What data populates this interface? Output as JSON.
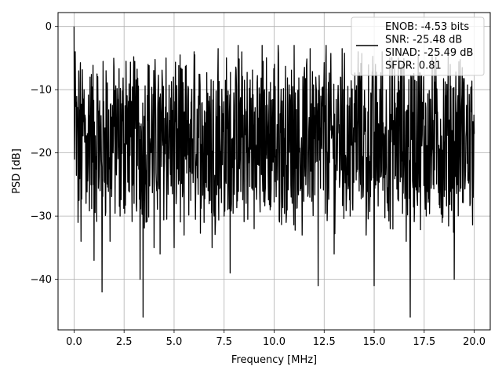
{
  "chart_data": {
    "type": "line",
    "xlabel": "Frequency [MHz]",
    "ylabel": "PSD [dB]",
    "xlim": [
      -0.8,
      20.8
    ],
    "ylim": [
      -48,
      2.2
    ],
    "grid": true,
    "x_ticks": [
      0.0,
      2.5,
      5.0,
      7.5,
      10.0,
      12.5,
      15.0,
      17.5,
      20.0
    ],
    "x_tick_labels": [
      "0.0",
      "2.5",
      "5.0",
      "7.5",
      "10.0",
      "12.5",
      "15.0",
      "17.5",
      "20.0"
    ],
    "y_ticks": [
      0,
      -10,
      -20,
      -30,
      -40
    ],
    "y_tick_labels": [
      "0",
      "−10",
      "−20",
      "−30",
      "−40"
    ],
    "line_color": "#000000",
    "legend": {
      "placement": "upper right",
      "entries": [
        "ENOB: -4.53 bits",
        "SNR: -25.48 dB",
        "SINAD: -25.49 dB",
        "SFDR: 0.81"
      ]
    },
    "series": [
      {
        "x": [
          0.0,
          0.02,
          0.06,
          0.1,
          0.2,
          0.3,
          0.35,
          0.5,
          0.6,
          0.8,
          1.0,
          1.15,
          1.3,
          1.4,
          1.6,
          1.8,
          2.0,
          2.3,
          2.6,
          3.0,
          3.3,
          3.45,
          3.7,
          4.0,
          4.3,
          4.6,
          5.0,
          5.3,
          5.5,
          6.0,
          6.5,
          6.9,
          7.2,
          7.5,
          7.8,
          8.2,
          8.6,
          9.0,
          9.4,
          9.8,
          10.2,
          10.6,
          11.0,
          11.4,
          11.8,
          12.2,
          12.6,
          13.0,
          13.4,
          13.8,
          14.2,
          14.6,
          15.0,
          15.4,
          15.8,
          16.2,
          16.6,
          16.8,
          17.2,
          17.6,
          18.0,
          18.4,
          18.8,
          19.0,
          19.4,
          19.8,
          20.0
        ],
        "y": [
          0.0,
          -21.0,
          -4.0,
          -12.0,
          -31.0,
          -9.0,
          -34.0,
          -10.0,
          -28.0,
          -8.0,
          -37.0,
          -7.5,
          -26.0,
          -42.0,
          -7.0,
          -34.0,
          -6.5,
          -30.0,
          -5.5,
          -28.0,
          -40.0,
          -46.0,
          -6.0,
          -35.0,
          -36.0,
          -5.0,
          -35.0,
          -4.5,
          -33.0,
          -4.0,
          -31.0,
          -35.0,
          -3.5,
          -30.0,
          -39.0,
          -3.0,
          -28.0,
          -32.0,
          -3.0,
          -29.0,
          -3.0,
          -31.0,
          -3.0,
          -33.0,
          -3.5,
          -41.0,
          -3.0,
          -36.0,
          -3.5,
          -30.0,
          -4.0,
          -33.0,
          -41.0,
          -4.0,
          -32.0,
          -5.0,
          -34.0,
          -46.0,
          -4.5,
          -30.0,
          -5.5,
          -31.0,
          -6.0,
          -40.0,
          -6.5,
          -28.0,
          -17.0
        ]
      }
    ]
  }
}
